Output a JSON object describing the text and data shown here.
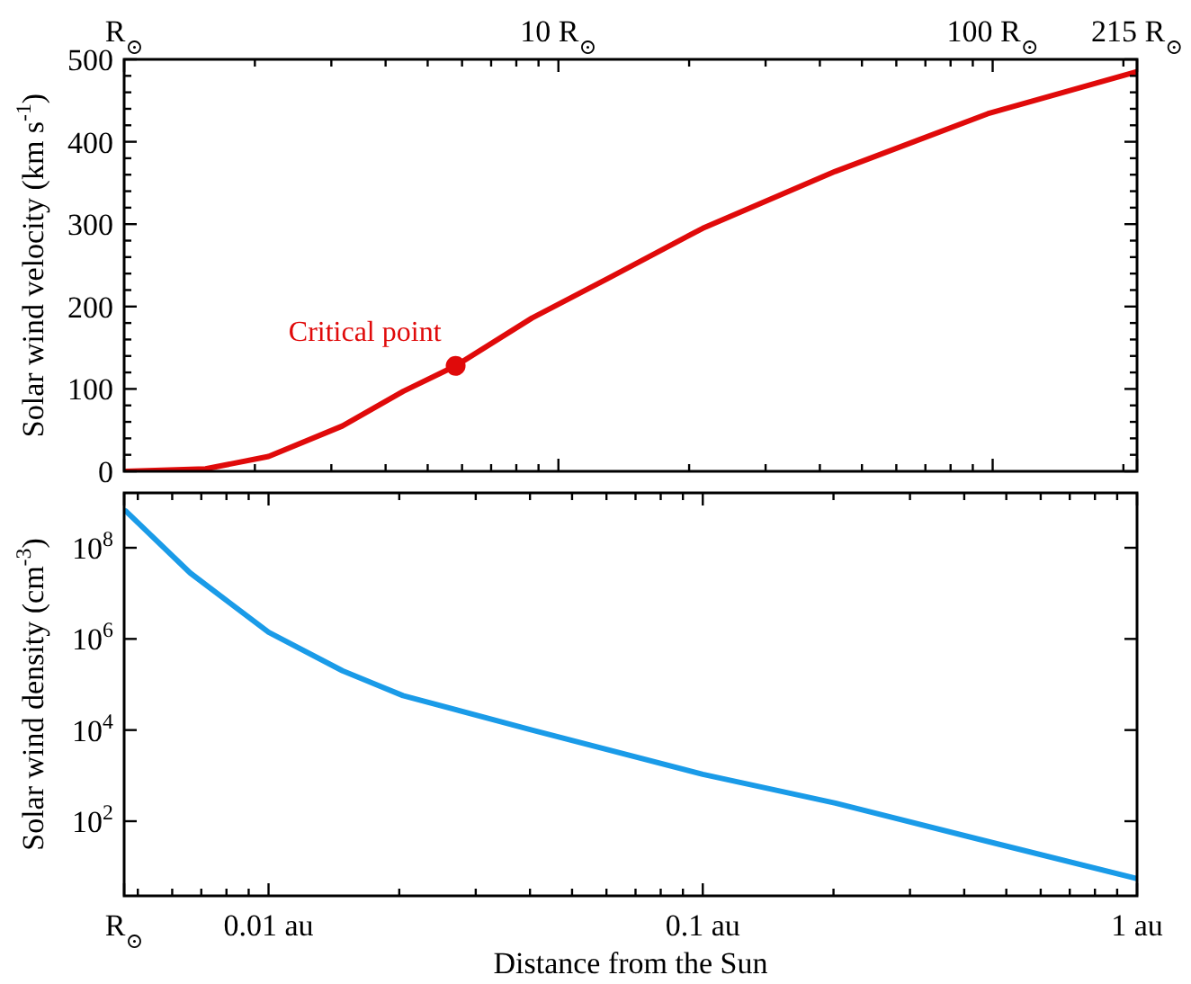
{
  "chart_data": [
    {
      "type": "line",
      "ylabel": "Solar wind velocity (km s$^{-1}$)",
      "log": "x",
      "xlim": [
        1,
        215
      ],
      "xticks": [
        {
          "value": 1,
          "label": "R$_{⊙}$"
        },
        {
          "value": 2,
          "label": null
        },
        {
          "value": 3,
          "label": null
        },
        {
          "value": 4,
          "label": null
        },
        {
          "value": 5,
          "label": null
        },
        {
          "value": 6,
          "label": null
        },
        {
          "value": 7,
          "label": null
        },
        {
          "value": 8,
          "label": null
        },
        {
          "value": 9,
          "label": null
        },
        {
          "value": 10,
          "label": "10 R$_{⊙}$"
        },
        {
          "value": 20,
          "label": null
        },
        {
          "value": 30,
          "label": null
        },
        {
          "value": 40,
          "label": null
        },
        {
          "value": 50,
          "label": null
        },
        {
          "value": 60,
          "label": null
        },
        {
          "value": 70,
          "label": null
        },
        {
          "value": 80,
          "label": null
        },
        {
          "value": 90,
          "label": null
        },
        {
          "value": 100,
          "label": "100 R$_{⊙}$"
        },
        {
          "value": 200,
          "label": null
        },
        {
          "value": 215,
          "label": "215 R$_{⊙}$"
        }
      ],
      "ylim": [
        0,
        500
      ],
      "yticks": [
        0,
        {
          "value": 20,
          "label": null
        },
        {
          "value": 40,
          "label": null
        },
        {
          "value": 60,
          "label": null
        },
        {
          "value": 80,
          "label": null
        },
        100,
        {
          "value": 120,
          "label": null
        },
        {
          "value": 140,
          "label": null
        },
        {
          "value": 160,
          "label": null
        },
        {
          "value": 180,
          "label": null
        },
        200,
        {
          "value": 220,
          "label": null
        },
        {
          "value": 240,
          "label": null
        },
        {
          "value": 260,
          "label": null
        },
        {
          "value": 280,
          "label": null
        },
        300,
        {
          "value": 320,
          "label": null
        },
        {
          "value": 340,
          "label": null
        },
        {
          "value": 360,
          "label": null
        },
        {
          "value": 380,
          "label": null
        },
        400,
        {
          "value": 420,
          "label": null
        },
        {
          "value": 440,
          "label": null
        },
        {
          "value": 460,
          "label": null
        },
        {
          "value": 480,
          "label": null
        },
        500
      ],
      "series": [
        {
          "color": "#e00a0a",
          "x": [
            1.01,
            1.54,
            2.15,
            3.18,
            4.39,
            5.8,
            8.69,
            13,
            21.5,
            43.4,
            97.4,
            215
          ],
          "values": [
            0,
            3,
            18,
            55,
            97,
            128,
            186,
            234,
            295,
            364,
            434,
            485
          ]
        },
        {
          "type": "scatter",
          "marker": "circle",
          "color": "#e00a0a",
          "x": [
            5.8
          ],
          "values": [
            128
          ]
        }
      ],
      "annotations": [
        {
          "text": "Critical point",
          "x": 5.8,
          "y": 128
        }
      ]
    },
    {
      "type": "line",
      "ylabel": "Solar wind density (cm$^{-3}$)",
      "xlabel": "Distance from the Sun",
      "log": "xy",
      "xlim": [
        0.00465,
        1
      ],
      "xticks": [
        {
          "value": 0.00465,
          "label": "R$_{⊙}$"
        },
        {
          "value": 0.005,
          "label": null
        },
        {
          "value": 0.006,
          "label": null
        },
        {
          "value": 0.007,
          "label": null
        },
        {
          "value": 0.008,
          "label": null
        },
        {
          "value": 0.009,
          "label": null
        },
        {
          "value": 0.01,
          "label": "0.01 au"
        },
        {
          "value": 0.02,
          "label": null
        },
        {
          "value": 0.03,
          "label": null
        },
        {
          "value": 0.04,
          "label": null
        },
        {
          "value": 0.05,
          "label": null
        },
        {
          "value": 0.06,
          "label": null
        },
        {
          "value": 0.07,
          "label": null
        },
        {
          "value": 0.08,
          "label": null
        },
        {
          "value": 0.09,
          "label": null
        },
        {
          "value": 0.1,
          "label": "0.1 au"
        },
        {
          "value": 0.2,
          "label": null
        },
        {
          "value": 0.3,
          "label": null
        },
        {
          "value": 0.4,
          "label": null
        },
        {
          "value": 0.5,
          "label": null
        },
        {
          "value": 0.6,
          "label": null
        },
        {
          "value": 0.7,
          "label": null
        },
        {
          "value": 0.8,
          "label": null
        },
        {
          "value": 0.9,
          "label": null
        },
        {
          "value": 1,
          "label": "1 au"
        }
      ],
      "ylim": [
        2.3,
        1600000000
      ],
      "yticks": [
        {
          "value": 100,
          "label": "10$^{2}$"
        },
        {
          "value": 10000,
          "label": "10$^{4}$"
        },
        {
          "value": 1000000,
          "label": "10$^{6}$"
        },
        {
          "value": 100000000,
          "label": "10$^{8}$"
        }
      ],
      "series": [
        {
          "color": "#1a9be8",
          "x": [
            0.00469,
            0.0066,
            0.01,
            0.0148,
            0.0204,
            0.0404,
            0.1,
            0.202,
            0.453,
            1
          ],
          "values": [
            640000000,
            28000000,
            1400000,
            200000,
            57000,
            10000,
            1070,
            250,
            36,
            5.5
          ]
        }
      ]
    }
  ]
}
